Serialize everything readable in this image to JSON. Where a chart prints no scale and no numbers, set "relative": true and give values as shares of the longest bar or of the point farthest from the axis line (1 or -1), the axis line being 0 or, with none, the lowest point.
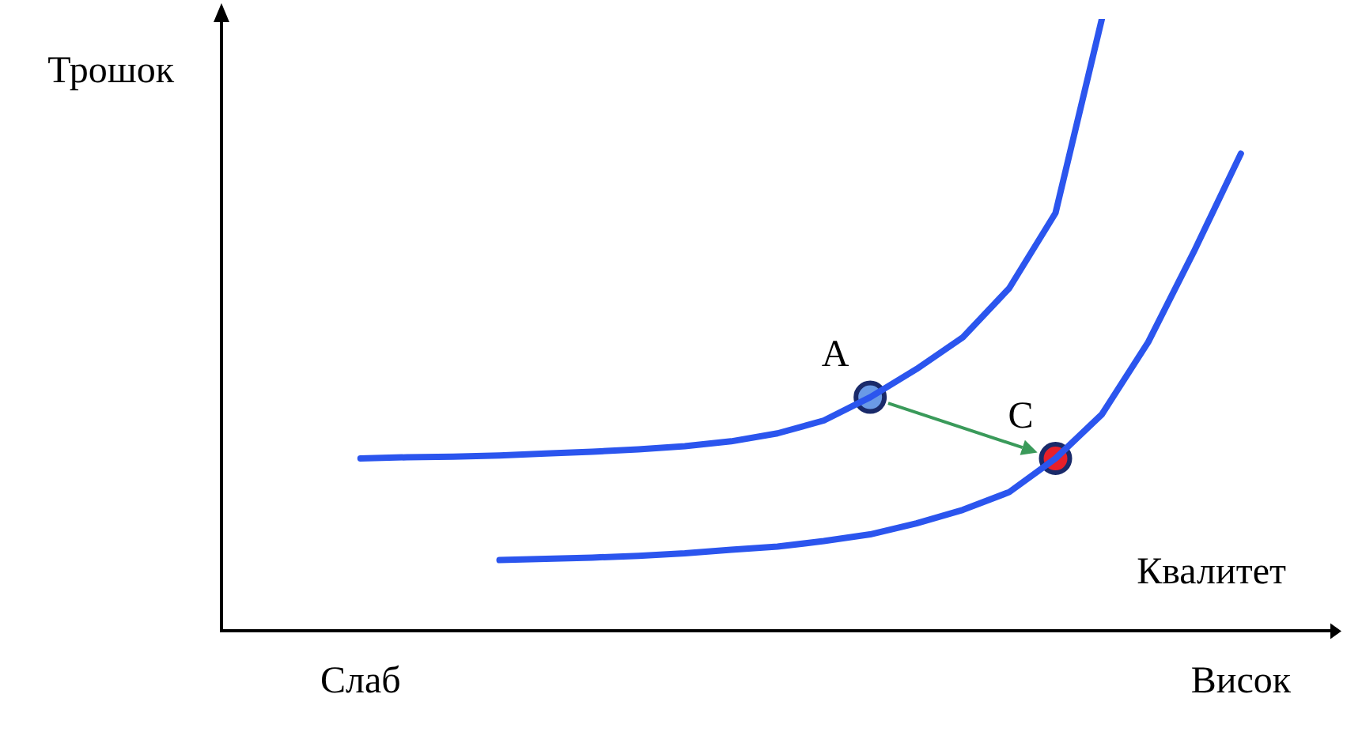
{
  "chart_data": {
    "type": "line",
    "relative": true,
    "xlabel": "Квалитет",
    "ylabel": "Трошок",
    "categories": [
      null,
      null,
      null,
      "Слаб",
      null,
      null,
      null,
      null,
      null,
      null,
      null,
      null,
      null,
      null,
      null,
      null,
      null,
      null,
      null,
      null,
      null,
      null,
      "Висок",
      null,
      null
    ],
    "grid": false,
    "legend": false,
    "marker": "none",
    "line_style": "solid",
    "series": [
      {
        "color": "#2b55ee",
        "values": [
          null,
          null,
          null,
          0.282,
          0.284,
          0.285,
          0.287,
          0.29,
          0.293,
          0.297,
          0.302,
          0.31,
          0.323,
          0.344,
          0.382,
          0.428,
          0.48,
          0.56,
          0.683,
          1,
          null,
          null,
          null,
          null,
          null
        ]
      },
      {
        "color": "#2b55ee",
        "values": [
          null,
          null,
          null,
          null,
          null,
          null,
          0.116,
          0.118,
          0.12,
          0.123,
          0.127,
          0.133,
          0.138,
          0.147,
          0.158,
          0.176,
          0.198,
          0.227,
          0.282,
          0.354,
          0.472,
          0.622,
          0.78,
          null,
          null
        ]
      },
      {
        "name": "A",
        "type": "scatter",
        "marker": "circle",
        "color": "#6a9ae6",
        "values": [
          null,
          null,
          null,
          null,
          null,
          null,
          null,
          null,
          null,
          null,
          null,
          null,
          null,
          null,
          0.382,
          null,
          null,
          null,
          null,
          null,
          null,
          null,
          null,
          null,
          null
        ]
      },
      {
        "name": "C",
        "type": "scatter",
        "marker": "circle",
        "color": "#e8202a",
        "values": [
          null,
          null,
          null,
          null,
          null,
          null,
          null,
          null,
          null,
          null,
          null,
          null,
          null,
          null,
          null,
          null,
          null,
          null,
          0.282,
          null,
          null,
          null,
          null,
          null,
          null
        ]
      }
    ]
  }
}
